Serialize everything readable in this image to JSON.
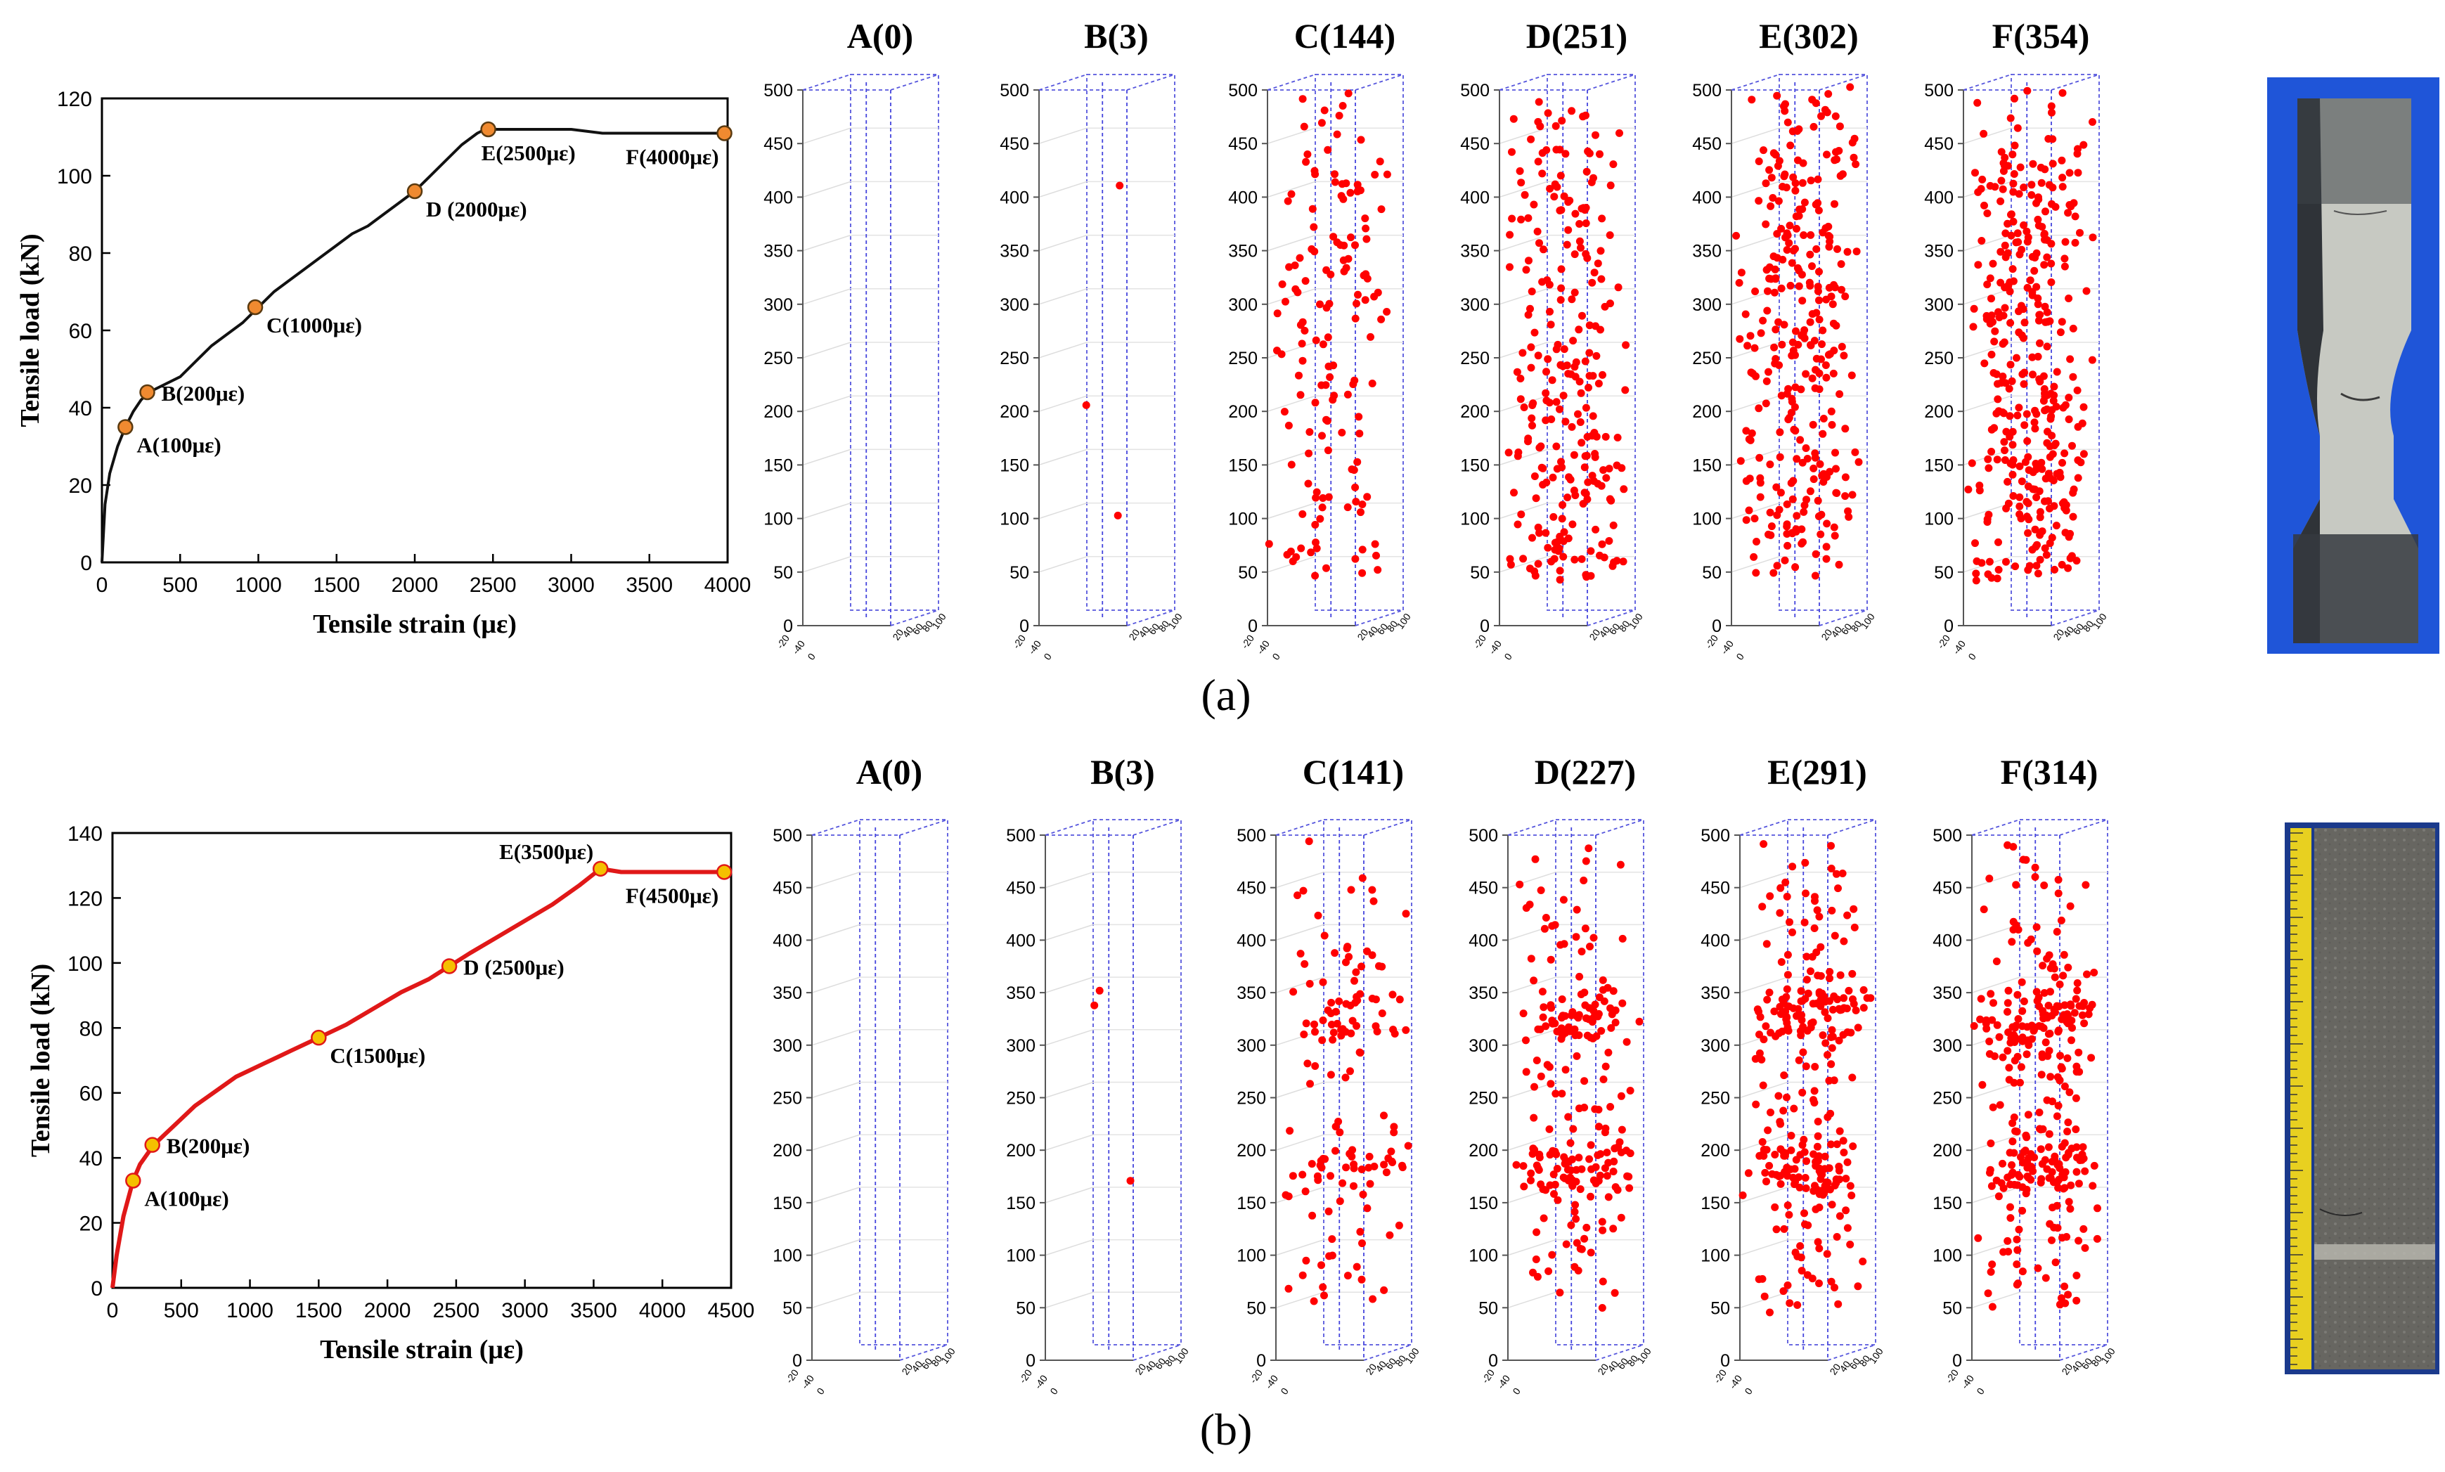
{
  "chart_data": [
    {
      "type": "line",
      "name": "row-a-load-strain",
      "xlabel": "Tensile strain (με)",
      "ylabel": "Tensile load (kN)",
      "xlim": [
        0,
        4000
      ],
      "ylim": [
        0,
        120
      ],
      "xticks": [
        "0",
        "500",
        "1000",
        "1500",
        "2000",
        "2500",
        "3000",
        "3500",
        "4000"
      ],
      "yticks": [
        "0",
        "20",
        "40",
        "60",
        "80",
        "100",
        "120"
      ],
      "line_color": "#111111",
      "marker_color": "#f08a30",
      "series": [
        {
          "name": "load",
          "x": [
            0,
            20,
            50,
            100,
            150,
            200,
            250,
            300,
            400,
            500,
            600,
            700,
            800,
            900,
            1000,
            1100,
            1200,
            1300,
            1400,
            1500,
            1600,
            1700,
            1800,
            1900,
            2000,
            2100,
            2200,
            2300,
            2400,
            2450,
            2600,
            2800,
            3000,
            3200,
            3400,
            3600,
            3800,
            3950
          ],
          "y": [
            0,
            15,
            23,
            30,
            35,
            39,
            42,
            44,
            46,
            48,
            52,
            56,
            59,
            62,
            66,
            70,
            73,
            76,
            79,
            82,
            85,
            87,
            90,
            93,
            96,
            100,
            104,
            108,
            111,
            112,
            112,
            112,
            112,
            111,
            111,
            111,
            111,
            111
          ]
        }
      ],
      "points": [
        {
          "x": 150,
          "y": 35,
          "label": "A(100με)",
          "pos": "below-right"
        },
        {
          "x": 290,
          "y": 44,
          "label": "B(200με)",
          "pos": "right"
        },
        {
          "x": 980,
          "y": 66,
          "label": "C(1000με)",
          "pos": "below-right"
        },
        {
          "x": 2000,
          "y": 96,
          "label": "D (2000με)",
          "pos": "below-right"
        },
        {
          "x": 2470,
          "y": 112,
          "label": "E(2500με)",
          "pos": "below"
        },
        {
          "x": 3980,
          "y": 111,
          "label": "F(4000με)",
          "pos": "below-left"
        }
      ],
      "caption": "(a)"
    },
    {
      "type": "line",
      "name": "row-b-load-strain",
      "xlabel": "Tensile strain (με)",
      "ylabel": "Tensile load (kN)",
      "xlim": [
        0,
        4500
      ],
      "ylim": [
        0,
        140
      ],
      "xticks": [
        "0",
        "500",
        "1000",
        "1500",
        "2000",
        "2500",
        "3000",
        "3500",
        "4000",
        "4500"
      ],
      "yticks": [
        "0",
        "20",
        "40",
        "60",
        "80",
        "100",
        "120",
        "140"
      ],
      "line_color": "#e01818",
      "marker_color": "#f5c000",
      "series": [
        {
          "name": "load",
          "x": [
            0,
            30,
            80,
            150,
            200,
            300,
            400,
            500,
            600,
            700,
            800,
            900,
            1000,
            1100,
            1200,
            1300,
            1400,
            1500,
            1700,
            1900,
            2100,
            2300,
            2450,
            2600,
            2800,
            3000,
            3200,
            3400,
            3550,
            3700,
            3900,
            4100,
            4300,
            4450
          ],
          "y": [
            0,
            10,
            22,
            33,
            38,
            44,
            48,
            52,
            56,
            59,
            62,
            65,
            67,
            69,
            71,
            73,
            75,
            77,
            81,
            86,
            91,
            95,
            99,
            103,
            108,
            113,
            118,
            124,
            129,
            128,
            128,
            128,
            128,
            128
          ]
        }
      ],
      "points": [
        {
          "x": 150,
          "y": 33,
          "label": "A(100με)",
          "pos": "below-right"
        },
        {
          "x": 290,
          "y": 44,
          "label": "B(200με)",
          "pos": "right"
        },
        {
          "x": 1500,
          "y": 77,
          "label": "C(1500με)",
          "pos": "below-right"
        },
        {
          "x": 2450,
          "y": 99,
          "label": "D (2500με)",
          "pos": "right"
        },
        {
          "x": 3550,
          "y": 129,
          "label": "E(3500με)",
          "pos": "above-left"
        },
        {
          "x": 4450,
          "y": 128,
          "label": "F(4500με)",
          "pos": "below-left"
        }
      ],
      "caption": "(b)"
    },
    {
      "type": "scatter",
      "name": "row-a-ae-3d",
      "zlim": [
        0,
        500
      ],
      "zticks": [
        "0",
        "50",
        "100",
        "150",
        "200",
        "250",
        "300",
        "350",
        "400",
        "450",
        "500"
      ],
      "point_color": "#ff0000",
      "panels": [
        {
          "title": "A(0)",
          "count": 0
        },
        {
          "title": "B(3)",
          "count": 3,
          "fixed": [
            [
              0.7,
              405
            ],
            [
              0.32,
              200
            ],
            [
              0.68,
              97
            ]
          ]
        },
        {
          "title": "C(144)",
          "count": 144
        },
        {
          "title": "D(251)",
          "count": 251
        },
        {
          "title": "E(302)",
          "count": 302
        },
        {
          "title": "F(354)",
          "count": 354
        }
      ]
    },
    {
      "type": "scatter",
      "name": "row-b-ae-3d",
      "zlim": [
        0,
        500
      ],
      "zticks": [
        "0",
        "50",
        "100",
        "150",
        "200",
        "250",
        "300",
        "350",
        "400",
        "450",
        "500"
      ],
      "point_color": "#ff0000",
      "panels": [
        {
          "title": "A(0)",
          "count": 0
        },
        {
          "title": "B(3)",
          "count": 3,
          "fixed": [
            [
              0.34,
              332
            ],
            [
              0.4,
              346
            ],
            [
              0.75,
              165
            ]
          ]
        },
        {
          "title": "C(141)",
          "count": 141
        },
        {
          "title": "D(227)",
          "count": 227
        },
        {
          "title": "E(291)",
          "count": 291
        },
        {
          "title": "F(314)",
          "count": 314
        }
      ]
    }
  ],
  "photos": [
    {
      "name": "specimen-photo-a",
      "desc": "dog-bone specimen"
    },
    {
      "name": "specimen-photo-b",
      "desc": "prism specimen with ruler"
    }
  ],
  "depth_tick_labels": [
    "-20",
    "-40",
    "0",
    "20",
    "40",
    "60",
    "80",
    "100"
  ]
}
